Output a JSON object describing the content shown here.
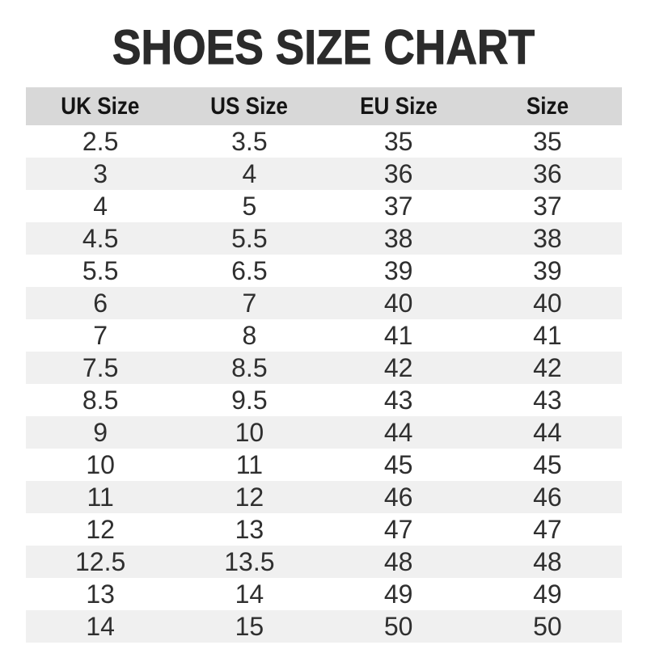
{
  "title": "SHOES SIZE CHART",
  "chart_data": {
    "type": "table",
    "title": "SHOES SIZE CHART",
    "columns": [
      "UK Size",
      "US Size",
      "EU Size",
      "Size"
    ],
    "rows": [
      [
        "2.5",
        "3.5",
        "35",
        "35"
      ],
      [
        "3",
        "4",
        "36",
        "36"
      ],
      [
        "4",
        "5",
        "37",
        "37"
      ],
      [
        "4.5",
        "5.5",
        "38",
        "38"
      ],
      [
        "5.5",
        "6.5",
        "39",
        "39"
      ],
      [
        "6",
        "7",
        "40",
        "40"
      ],
      [
        "7",
        "8",
        "41",
        "41"
      ],
      [
        "7.5",
        "8.5",
        "42",
        "42"
      ],
      [
        "8.5",
        "9.5",
        "43",
        "43"
      ],
      [
        "9",
        "10",
        "44",
        "44"
      ],
      [
        "10",
        "11",
        "45",
        "45"
      ],
      [
        "11",
        "12",
        "46",
        "46"
      ],
      [
        "12",
        "13",
        "47",
        "47"
      ],
      [
        "12.5",
        "13.5",
        "48",
        "48"
      ],
      [
        "13",
        "14",
        "49",
        "49"
      ],
      [
        "14",
        "15",
        "50",
        "50"
      ]
    ],
    "layout": {
      "header_row": true,
      "striped": true,
      "alignment": "center"
    }
  },
  "colors": {
    "page_bg": "#ffffff",
    "title_text": "#2b2b2b",
    "header_bg": "#d8d8d8",
    "header_text": "#141414",
    "row_stripe_bg": "#f0f0f0",
    "cell_text": "#2f2f2f"
  }
}
